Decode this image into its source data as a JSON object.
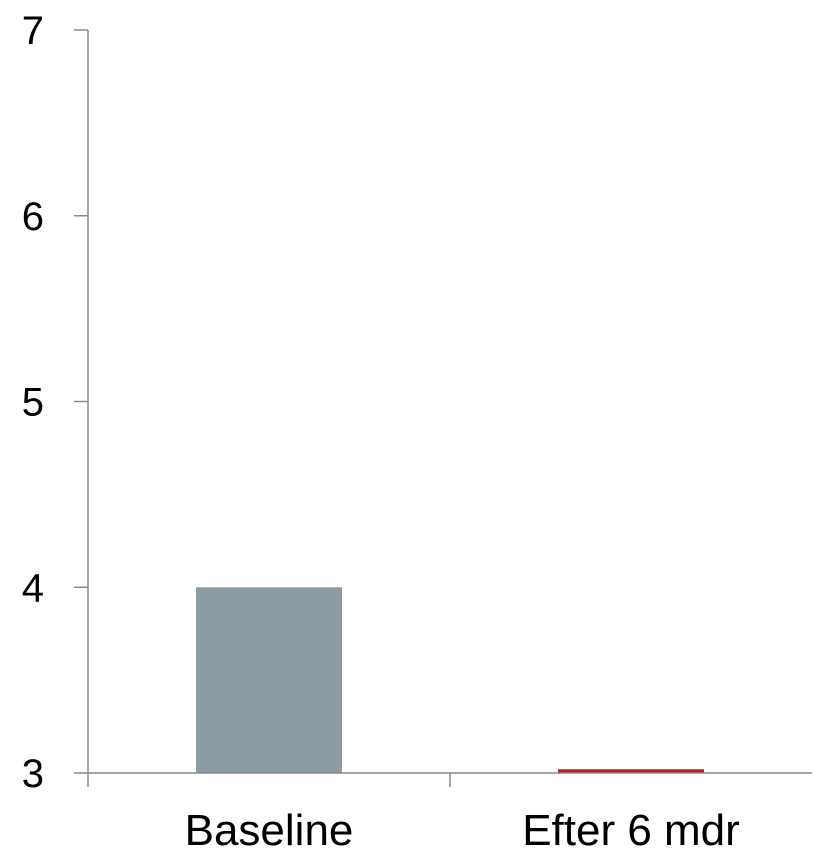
{
  "chart_data": {
    "type": "bar",
    "title": "",
    "xlabel": "",
    "ylabel": "",
    "categories": [
      "Baseline",
      "Efter 6 mdr"
    ],
    "values": [
      4.0,
      3.02
    ],
    "bar_colors": [
      "#8c9aa1",
      "#b01e1e"
    ],
    "ylim": [
      3,
      7
    ],
    "yticks": [
      3,
      4,
      5,
      6,
      7
    ],
    "ytick_labels": [
      "3",
      "4",
      "5",
      "6",
      "7"
    ],
    "grid": false,
    "legend": "none",
    "axis_color": "#888888"
  }
}
